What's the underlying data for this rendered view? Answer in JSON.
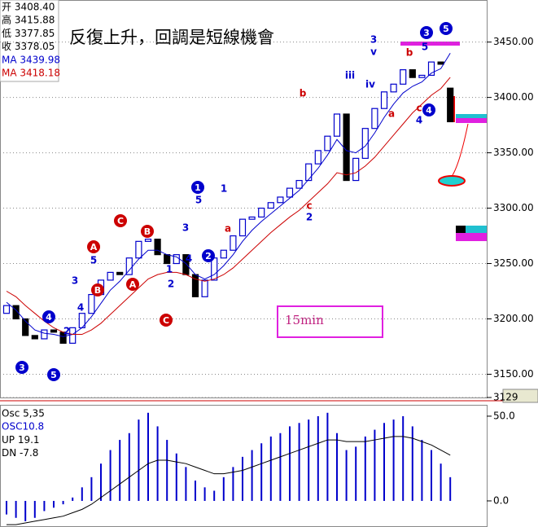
{
  "chart_data": [
    {
      "type": "candlestick",
      "title": "反復上升，回調是短線機會",
      "info": [
        "开 3408.40",
        "高 3415.88",
        "低 3377.85",
        "收 3378.05",
        "MA 3439.98",
        "MA 3418.18"
      ],
      "info_colors": [
        "#000000",
        "#000000",
        "#000000",
        "#000000",
        "#0000cc",
        "#cc0000"
      ],
      "box_label": "15min",
      "open": [
        3205,
        3212,
        3200,
        3185,
        3182,
        3190,
        3188,
        3178,
        3192,
        3205,
        3222,
        3235,
        3242,
        3240,
        3255,
        3270,
        3272,
        3258,
        3250,
        3258,
        3240,
        3220,
        3235,
        3255,
        3262,
        3275,
        3290,
        3292,
        3300,
        3305,
        3310,
        3318,
        3325,
        3340,
        3352,
        3365,
        3385,
        3325,
        3345,
        3372,
        3390,
        3405,
        3412,
        3425,
        3418,
        3420,
        3432,
        3408.4
      ],
      "close": [
        3212,
        3200,
        3185,
        3182,
        3190,
        3188,
        3178,
        3192,
        3205,
        3222,
        3235,
        3242,
        3240,
        3255,
        3270,
        3272,
        3258,
        3250,
        3258,
        3240,
        3220,
        3235,
        3255,
        3262,
        3275,
        3290,
        3292,
        3300,
        3305,
        3310,
        3318,
        3325,
        3340,
        3352,
        3365,
        3385,
        3325,
        3345,
        3372,
        3390,
        3405,
        3412,
        3425,
        3418,
        3420,
        3432,
        3430,
        3378.05
      ],
      "up_color": "#0000cc",
      "down_color": "#000000",
      "series": [
        {
          "color": "#0000cc",
          "values": [
            3215,
            3208,
            3198,
            3190,
            3187,
            3186,
            3184,
            3186,
            3192,
            3202,
            3214,
            3226,
            3234,
            3244,
            3254,
            3262,
            3262,
            3258,
            3256,
            3250,
            3240,
            3236,
            3240,
            3248,
            3258,
            3270,
            3280,
            3288,
            3295,
            3302,
            3309,
            3316,
            3326,
            3336,
            3348,
            3362,
            3352,
            3350,
            3356,
            3368,
            3382,
            3394,
            3404,
            3410,
            3414,
            3422,
            3426,
            3439.98
          ]
        },
        {
          "color": "#cc0000",
          "values": [
            3225,
            3220,
            3212,
            3205,
            3198,
            3192,
            3188,
            3186,
            3186,
            3190,
            3196,
            3204,
            3212,
            3220,
            3228,
            3236,
            3240,
            3242,
            3242,
            3240,
            3236,
            3234,
            3236,
            3240,
            3246,
            3254,
            3262,
            3270,
            3278,
            3285,
            3292,
            3298,
            3306,
            3314,
            3322,
            3332,
            3330,
            3332,
            3338,
            3346,
            3356,
            3366,
            3376,
            3386,
            3394,
            3402,
            3408,
            3418.18
          ]
        }
      ],
      "ylim": [
        3129,
        3488
      ],
      "yticks": [
        {
          "value": 3150,
          "label": "3150.00"
        },
        {
          "value": 3200,
          "label": "3200.00"
        },
        {
          "value": 3250,
          "label": "3250.00"
        },
        {
          "value": 3300,
          "label": "3300.00"
        },
        {
          "value": 3350,
          "label": "3350.00"
        },
        {
          "value": 3400,
          "label": "3400.00"
        },
        {
          "value": 3450,
          "label": "3450.00"
        },
        3129
      ],
      "grid": true,
      "annotations": [
        {
          "text": "3",
          "color": "#0000cc"
        },
        {
          "text": "v",
          "color": "#0000cc"
        },
        {
          "text": "b",
          "color": "#cc0000"
        },
        {
          "text": "iii",
          "color": "#0000cc"
        },
        {
          "text": "iv",
          "color": "#0000cc"
        },
        {
          "text": "a",
          "color": "#cc0000"
        },
        {
          "text": "b",
          "color": "#cc0000"
        },
        {
          "text": "5",
          "color": "#0000cc"
        },
        {
          "text": "c",
          "color": "#cc0000"
        },
        {
          "text": "4",
          "color": "#0000cc"
        },
        {
          "text": "4",
          "color": "#0000cc",
          "circled": true
        },
        {
          "text": "3",
          "color": "#0000cc",
          "circled": true
        },
        {
          "text": "5",
          "color": "#0000cc",
          "circled": true
        },
        {
          "text": "c",
          "color": "#cc0000"
        },
        {
          "text": "2",
          "color": "#0000cc"
        },
        {
          "text": "a",
          "color": "#cc0000"
        },
        {
          "text": "1",
          "color": "#0000cc"
        },
        {
          "text": "5",
          "color": "#0000cc"
        },
        {
          "text": "1",
          "color": "#0000cc",
          "circled": true
        },
        {
          "text": "3",
          "color": "#0000cc"
        },
        {
          "text": "4",
          "color": "#0000cc"
        },
        {
          "text": "2",
          "color": "#0000cc",
          "circled": true
        },
        {
          "text": "1",
          "color": "#0000cc"
        },
        {
          "text": "2",
          "color": "#0000cc"
        },
        {
          "text": "B",
          "color": "#cc0000",
          "circled": true
        },
        {
          "text": "A",
          "color": "#cc0000",
          "circled": true
        },
        {
          "text": "C",
          "color": "#cc0000",
          "circled": true
        },
        {
          "text": "C",
          "color": "#cc0000",
          "circled": true
        },
        {
          "text": "A",
          "color": "#cc0000",
          "circled": true
        },
        {
          "text": "B",
          "color": "#cc0000",
          "circled": true
        },
        {
          "text": "5",
          "color": "#0000cc"
        },
        {
          "text": "3",
          "color": "#0000cc"
        },
        {
          "text": "4",
          "color": "#0000cc"
        },
        {
          "text": "2",
          "color": "#0000cc"
        },
        {
          "text": "4",
          "color": "#0000cc",
          "circled": true
        },
        {
          "text": "3",
          "color": "#0000cc",
          "circled": true
        },
        {
          "text": "5",
          "color": "#0000cc",
          "circled": true
        }
      ]
    },
    {
      "type": "bar",
      "info": [
        "Osc 5,35",
        "OSC10.8",
        "UP  19.1",
        "DN  -7.8"
      ],
      "info_colors": [
        "#000000",
        "#0000cc",
        "#000000",
        "#000000"
      ],
      "values": [
        -8,
        -10,
        -12,
        -10,
        -6,
        -4,
        -2,
        2,
        8,
        14,
        22,
        30,
        36,
        40,
        48,
        52,
        44,
        36,
        28,
        20,
        12,
        8,
        6,
        14,
        20,
        26,
        30,
        34,
        38,
        40,
        44,
        46,
        48,
        50,
        52,
        40,
        30,
        32,
        38,
        42,
        46,
        48,
        50,
        44,
        36,
        30,
        22,
        14
      ],
      "color": "#0000cc",
      "line": {
        "color": "#000000",
        "values": [
          -14,
          -14,
          -13,
          -12,
          -11,
          -10,
          -9,
          -7,
          -5,
          -2,
          2,
          6,
          10,
          14,
          18,
          22,
          24,
          24,
          23,
          22,
          20,
          18,
          16,
          16,
          17,
          18,
          20,
          22,
          24,
          26,
          28,
          30,
          32,
          34,
          36,
          36,
          35,
          35,
          35,
          36,
          37,
          38,
          38,
          37,
          35,
          33,
          30,
          27
        ]
      },
      "ylim": [
        -15.4,
        56.7
      ],
      "yticks": [
        {
          "value": 50,
          "label": "50.0"
        },
        {
          "value": 0,
          "label": "0.0"
        }
      ]
    }
  ]
}
